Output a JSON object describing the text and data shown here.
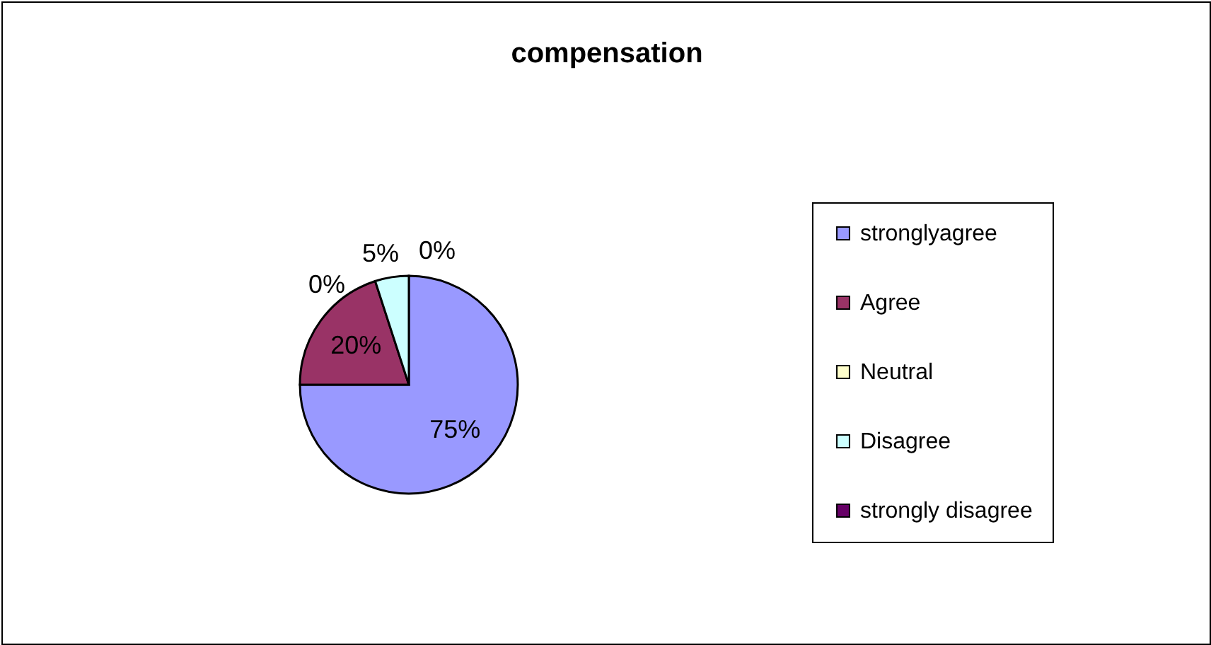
{
  "chart_data": {
    "type": "pie",
    "title": "compensation",
    "categories": [
      "stronglyagree",
      "Agree",
      "Neutral",
      "Disagree",
      "strongly disagree"
    ],
    "values": [
      75,
      20,
      0,
      5,
      0
    ],
    "colors": [
      "#9999ff",
      "#993366",
      "#ffffcc",
      "#ccffff",
      "#660066"
    ],
    "value_labels": [
      "75%",
      "20%",
      "0%",
      "5%",
      "0%"
    ],
    "legend": "right"
  }
}
